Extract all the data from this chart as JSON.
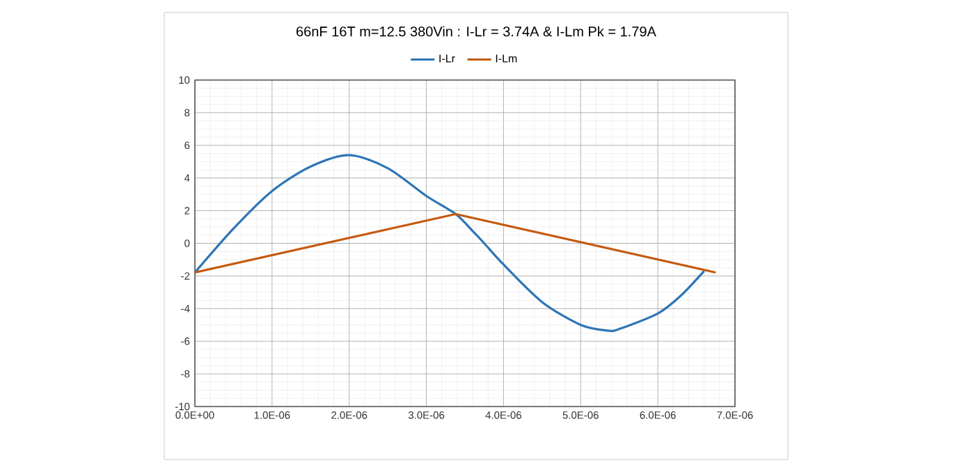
{
  "chart_data": {
    "type": "line",
    "title": "66nF 16T m=12.5 380Vin :  I-Lr = 3.74A & I-Lm Pk = 1.79A",
    "series": [
      {
        "name": "I-Lr",
        "color": "#2e75b6",
        "x": [
          0,
          5e-07,
          1e-06,
          1.5e-06,
          2e-06,
          2.5e-06,
          3e-06,
          3.38e-06,
          3.6e-06,
          3.75e-06,
          4e-06,
          4.5e-06,
          5e-06,
          5.35e-06,
          5.5e-06,
          6e-06,
          6.3e-06,
          6.6e-06
        ],
        "values": [
          -1.79,
          0.9,
          3.2,
          4.7,
          5.4,
          4.6,
          2.9,
          1.79,
          0.75,
          0.0,
          -1.3,
          -3.6,
          -5.0,
          -5.35,
          -5.25,
          -4.3,
          -3.2,
          -1.7
        ]
      },
      {
        "name": "I-Lm",
        "color": "#c55a11",
        "x": [
          0,
          3.38e-06,
          6.75e-06
        ],
        "values": [
          -1.79,
          1.79,
          -1.79
        ]
      }
    ],
    "xlim": [
      0,
      7e-06
    ],
    "ylim": [
      -10,
      10
    ],
    "xticks": [
      {
        "value": 0,
        "label": "0.0E+00"
      },
      {
        "value": 1e-06,
        "label": "1.0E-06"
      },
      {
        "value": 2e-06,
        "label": "2.0E-06"
      },
      {
        "value": 3e-06,
        "label": "3.0E-06"
      },
      {
        "value": 4e-06,
        "label": "4.0E-06"
      },
      {
        "value": 5e-06,
        "label": "5.0E-06"
      },
      {
        "value": 6e-06,
        "label": "6.0E-06"
      },
      {
        "value": 7e-06,
        "label": "7.0E-06"
      }
    ],
    "yticks": [
      -10,
      -8,
      -6,
      -4,
      -2,
      0,
      2,
      4,
      6,
      8,
      10
    ],
    "grid": true,
    "legend": "top",
    "marker": "none",
    "line_style": "solid"
  }
}
